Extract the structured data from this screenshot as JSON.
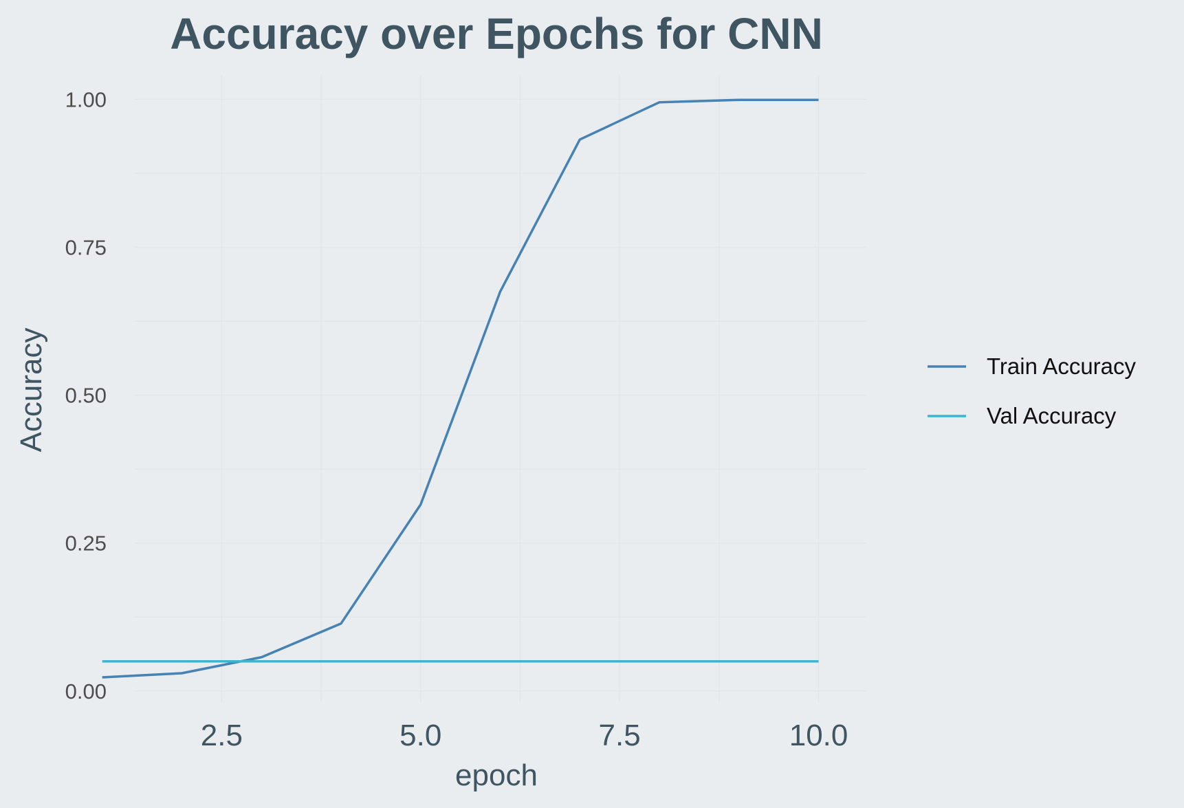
{
  "chart_data": {
    "type": "line",
    "title": "Accuracy over Epochs for CNN",
    "xlabel": "epoch",
    "ylabel": "Accuracy",
    "xlim": [
      1.4,
      10.6
    ],
    "ylim": [
      -0.02,
      1.04
    ],
    "xticks": [
      2.5,
      5.0,
      7.5,
      10.0
    ],
    "xtick_labels": [
      "2.5",
      "5.0",
      "7.5",
      "10.0"
    ],
    "yticks": [
      0.0,
      0.25,
      0.5,
      0.75,
      1.0
    ],
    "ytick_labels": [
      "0.00",
      "0.25",
      "0.50",
      "0.75",
      "1.00"
    ],
    "grid": true,
    "legend_position": "right",
    "x": [
      1,
      2,
      3,
      4,
      5,
      6,
      7,
      8,
      9,
      10
    ],
    "series": [
      {
        "name": "Train Accuracy",
        "color": "#4682b4",
        "values": [
          0.023,
          0.03,
          0.057,
          0.114,
          0.315,
          0.675,
          0.932,
          0.995,
          0.999,
          0.999
        ]
      },
      {
        "name": "Val Accuracy",
        "color": "#3bb5d0",
        "values": [
          0.05,
          0.05,
          0.05,
          0.05,
          0.05,
          0.05,
          0.05,
          0.05,
          0.05,
          0.05
        ]
      }
    ]
  }
}
